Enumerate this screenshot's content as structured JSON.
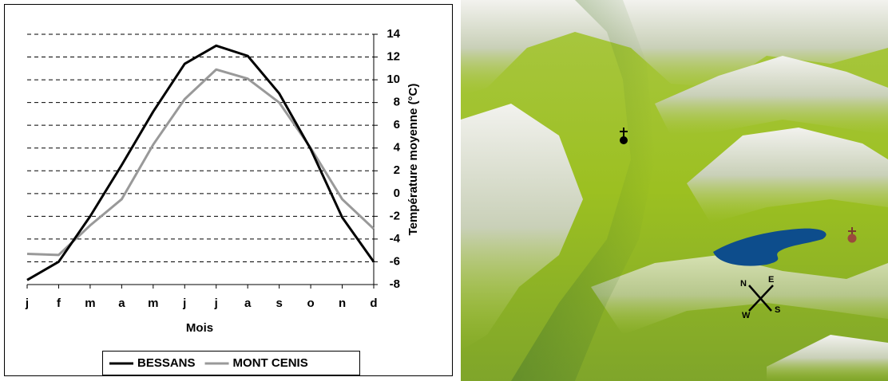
{
  "chart_data": {
    "type": "line",
    "x_label": "Mois",
    "y_label": "Température moyenne (°C)",
    "categories": [
      "j",
      "f",
      "m",
      "a",
      "m",
      "j",
      "j",
      "a",
      "s",
      "o",
      "n",
      "d"
    ],
    "series": [
      {
        "name": "BESSANS",
        "color": "#000000",
        "values": [
          -7.6,
          -6.0,
          -2.0,
          2.5,
          7.2,
          11.4,
          13.0,
          12.1,
          8.8,
          3.9,
          -2.1,
          -6.0
        ]
      },
      {
        "name": "MONT CENIS",
        "color": "#999999",
        "values": [
          -5.3,
          -5.4,
          -2.8,
          -0.5,
          4.3,
          8.3,
          10.9,
          10.1,
          8.0,
          4.0,
          -0.5,
          -3.1
        ]
      }
    ],
    "ylim": [
      -8,
      14
    ],
    "yticks": [
      -8,
      -6,
      -4,
      -2,
      0,
      2,
      4,
      6,
      8,
      10,
      12,
      14
    ],
    "grid": true,
    "y_axis_side": "right",
    "legend": "bottom"
  },
  "compass": {
    "n": "N",
    "e": "E",
    "s": "S",
    "w": "W"
  }
}
